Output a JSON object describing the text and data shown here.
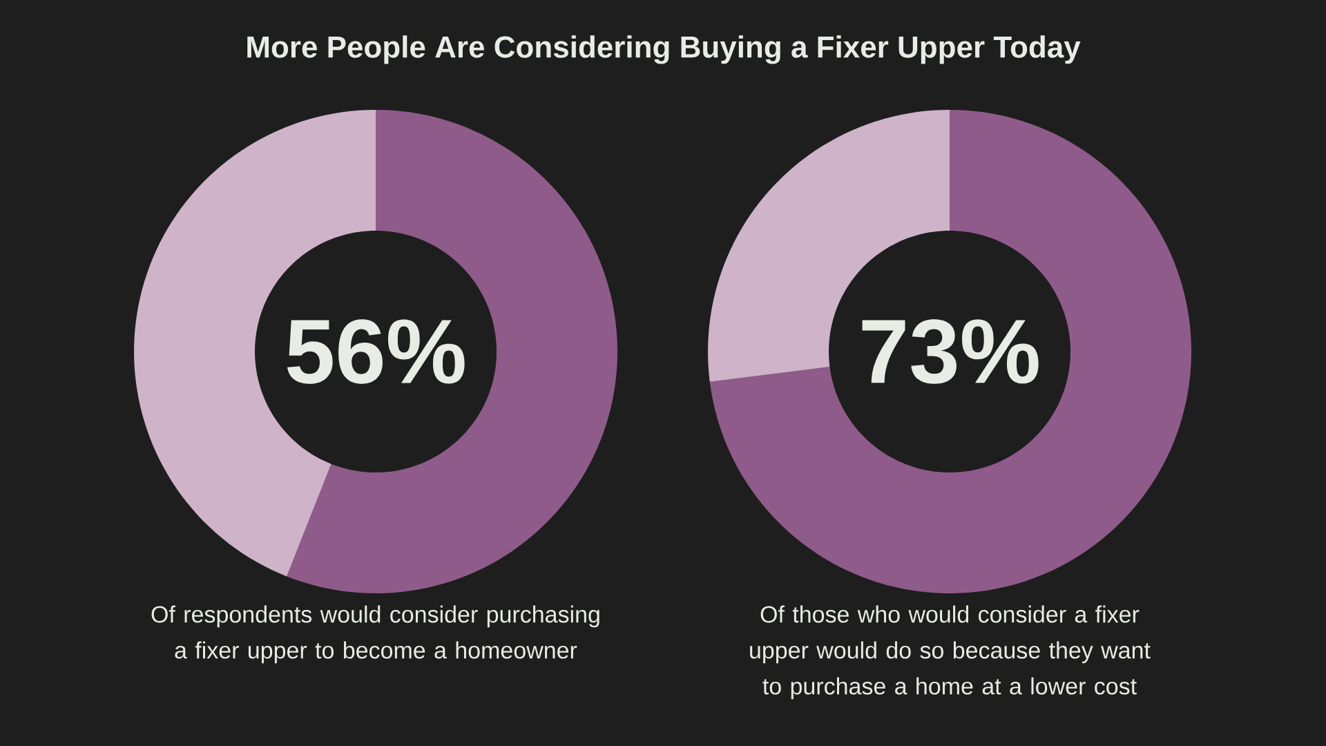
{
  "chart_data": [
    {
      "type": "donut",
      "title": "More People Are Considering Buying a Fixer Upper Today",
      "categories": [
        null,
        null
      ],
      "values": [
        56,
        44
      ],
      "colors": [
        "#8f5b8a",
        "#cfb3c9"
      ],
      "value_labels": [
        "56%",
        null
      ],
      "annotations": [
        "Of respondents would consider purchasing a fixer upper to become a homeowner"
      ]
    },
    {
      "type": "donut",
      "categories": [
        null,
        null
      ],
      "values": [
        73,
        27
      ],
      "colors": [
        "#8f5b8a",
        "#cfb3c9"
      ],
      "value_labels": [
        "73%",
        null
      ],
      "annotations": [
        "Of those who would consider a fixer upper would do so because they want to purchase a home at a lower cost"
      ]
    }
  ]
}
